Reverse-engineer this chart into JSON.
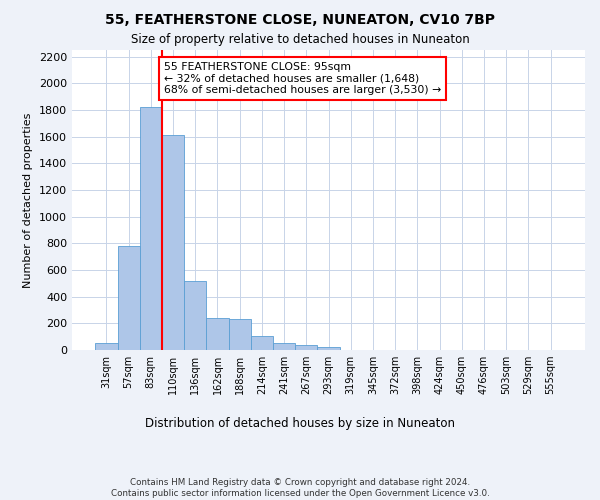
{
  "title1": "55, FEATHERSTONE CLOSE, NUNEATON, CV10 7BP",
  "title2": "Size of property relative to detached houses in Nuneaton",
  "xlabel": "Distribution of detached houses by size in Nuneaton",
  "ylabel": "Number of detached properties",
  "footnote": "Contains HM Land Registry data © Crown copyright and database right 2024.\nContains public sector information licensed under the Open Government Licence v3.0.",
  "bin_labels": [
    "31sqm",
    "57sqm",
    "83sqm",
    "110sqm",
    "136sqm",
    "162sqm",
    "188sqm",
    "214sqm",
    "241sqm",
    "267sqm",
    "293sqm",
    "319sqm",
    "345sqm",
    "372sqm",
    "398sqm",
    "424sqm",
    "450sqm",
    "476sqm",
    "503sqm",
    "529sqm",
    "555sqm"
  ],
  "bar_heights": [
    55,
    780,
    1820,
    1610,
    520,
    240,
    235,
    105,
    55,
    40,
    20,
    0,
    0,
    0,
    0,
    0,
    0,
    0,
    0,
    0,
    0
  ],
  "bar_color": "#aec6e8",
  "bar_edge_color": "#5a9fd4",
  "vline_color": "red",
  "annotation_text": "55 FEATHERSTONE CLOSE: 95sqm\n← 32% of detached houses are smaller (1,648)\n68% of semi-detached houses are larger (3,530) →",
  "annotation_box_color": "white",
  "annotation_box_edge_color": "red",
  "ylim": [
    0,
    2250
  ],
  "yticks": [
    0,
    200,
    400,
    600,
    800,
    1000,
    1200,
    1400,
    1600,
    1800,
    2000,
    2200
  ],
  "bg_color": "#eef2f9",
  "plot_bg_color": "#ffffff",
  "grid_color": "#c8d4e8"
}
